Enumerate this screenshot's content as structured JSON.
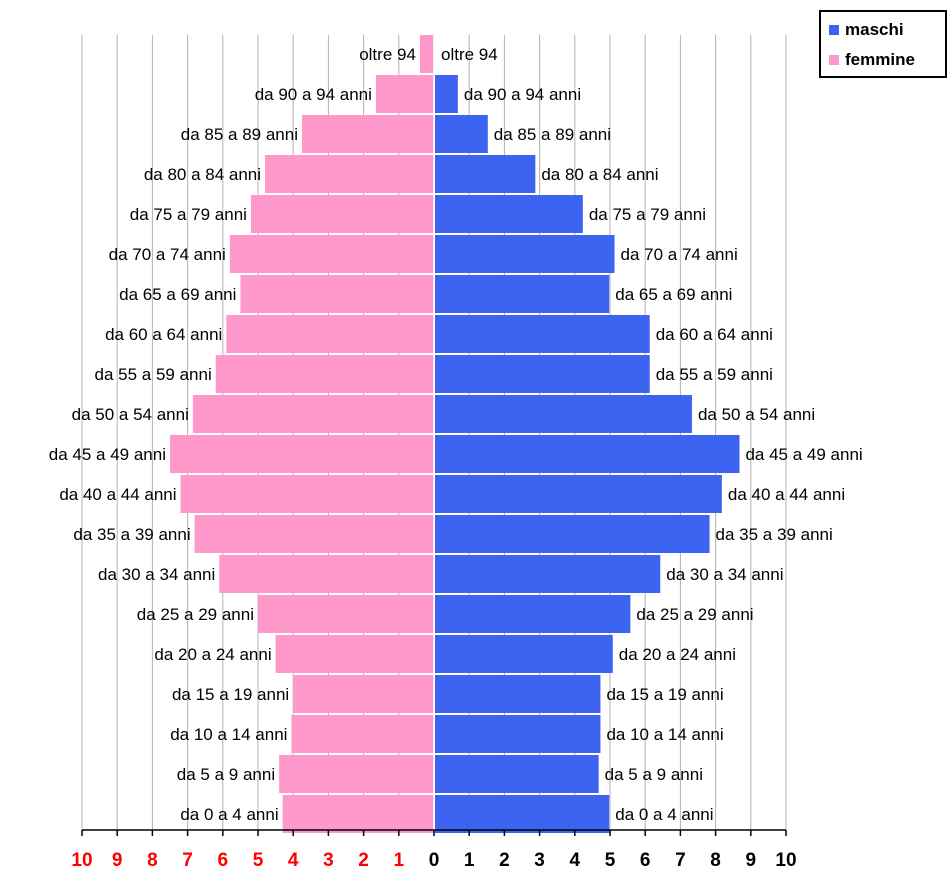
{
  "chart_data": {
    "type": "bar",
    "orientation": "horizontal-pyramid",
    "title": "",
    "categories": [
      "oltre 94",
      "da 90 a 94 anni",
      "da 85 a 89 anni",
      "da 80 a 84 anni",
      "da 75 a 79 anni",
      "da 70 a 74 anni",
      "da 65 a 69 anni",
      "da 60 a 64 anni",
      "da 55 a 59 anni",
      "da 50 a 54 anni",
      "da 45 a 49 anni",
      "da 40 a 44 anni",
      "da 35 a 39 anni",
      "da 30 a 34 anni",
      "da 25 a 29 anni",
      "da 20 a 24 anni",
      "da 15 a 19 anni",
      "da 10 a 14 anni",
      "da 5 a 9 anni",
      "da 0 a 4 anni"
    ],
    "series": [
      {
        "name": "maschi",
        "color": "#3c64f0",
        "side": "right",
        "values": [
          0.0,
          0.65,
          1.5,
          2.85,
          4.2,
          5.1,
          4.95,
          6.1,
          6.1,
          7.3,
          8.65,
          8.15,
          7.8,
          6.4,
          5.55,
          5.05,
          4.7,
          4.7,
          4.65,
          4.95
        ]
      },
      {
        "name": "femmine",
        "color": "#ff99cc",
        "side": "left",
        "values": [
          0.4,
          1.65,
          3.75,
          4.8,
          5.2,
          5.8,
          5.5,
          5.9,
          6.2,
          6.85,
          7.5,
          7.2,
          6.8,
          6.1,
          5.0,
          4.5,
          4.0,
          4.05,
          4.4,
          4.3
        ]
      }
    ],
    "xlim": [
      0,
      10
    ],
    "x_ticks_left": [
      "10",
      "9",
      "8",
      "7",
      "6",
      "5",
      "4",
      "3",
      "2",
      "1"
    ],
    "x_tick_center": "0",
    "x_ticks_right": [
      "1",
      "2",
      "3",
      "4",
      "5",
      "6",
      "7",
      "8",
      "9",
      "10"
    ],
    "left_tick_color": "#ff0000",
    "right_tick_color": "#000000",
    "grid": true,
    "legend_position": "top-right"
  },
  "legend": {
    "items": [
      {
        "label": "maschi",
        "color": "#3c64f0"
      },
      {
        "label": "femmine",
        "color": "#ff99cc"
      }
    ]
  }
}
